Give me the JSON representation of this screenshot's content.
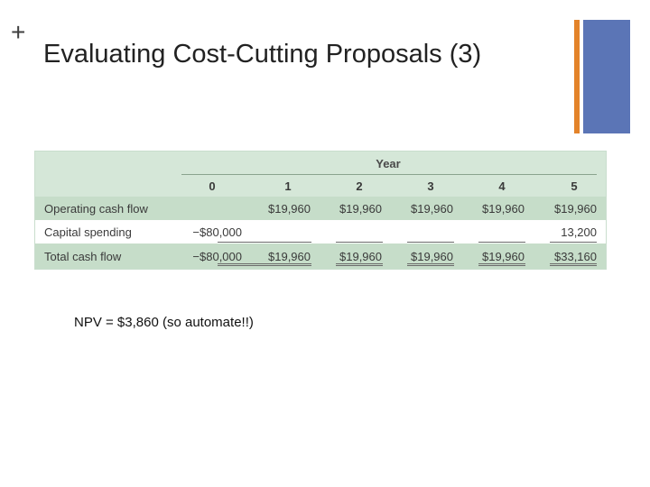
{
  "slide": {
    "plus_glyph": "+",
    "title": "Evaluating Cost-Cutting Proposals (3)",
    "note": "NPV = $3,860 (so automate!!)",
    "accent_orange": "#e3832a",
    "accent_blue": "#5b75b6"
  },
  "table": {
    "group_header": "Year",
    "years": [
      "0",
      "1",
      "2",
      "3",
      "4",
      "5"
    ],
    "rows": [
      {
        "label": "Operating cash flow",
        "values": [
          "",
          "$19,960",
          "$19,960",
          "$19,960",
          "$19,960",
          "$19,960"
        ]
      },
      {
        "label": "Capital spending",
        "values": [
          "−$80,000",
          "",
          "",
          "",
          "",
          "13,200"
        ]
      },
      {
        "label": "Total cash flow",
        "values": [
          "−$80,000",
          "$19,960",
          "$19,960",
          "$19,960",
          "$19,960",
          "$33,160"
        ]
      }
    ]
  }
}
